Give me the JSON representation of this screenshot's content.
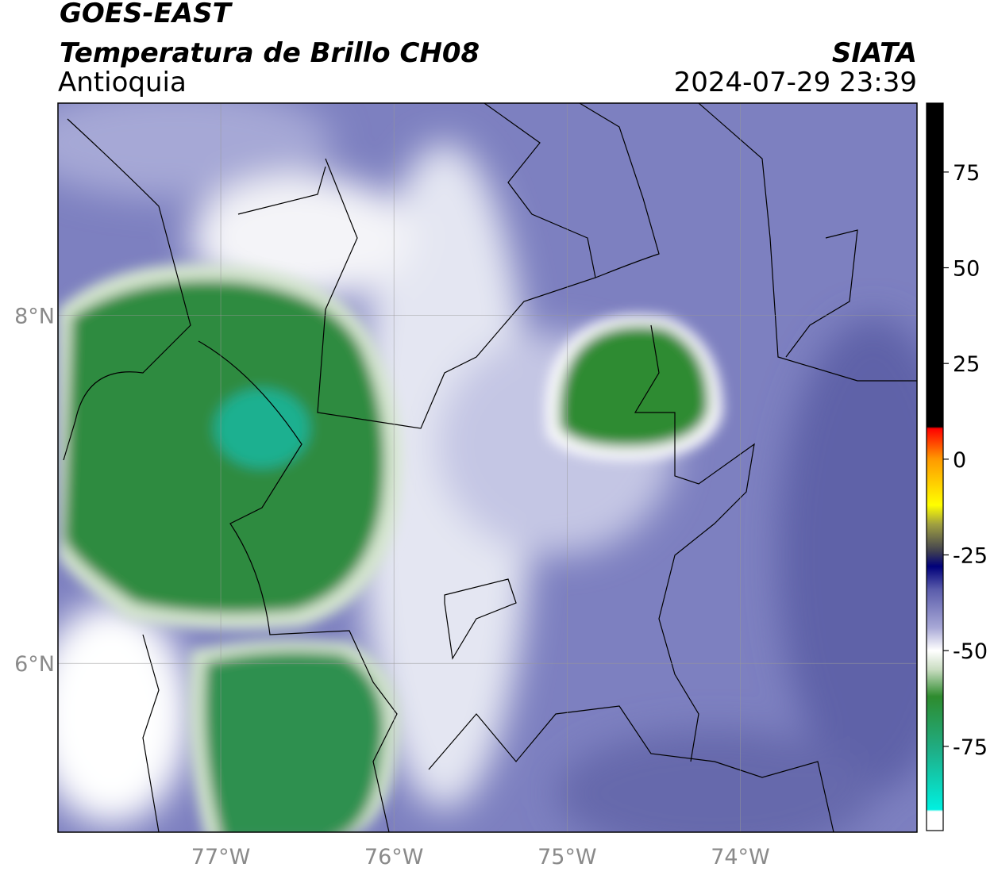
{
  "header": {
    "title": "GOES-EAST",
    "subtitle": "Temperatura de Brillo CH08",
    "region": "Antioquia",
    "source": "SIATA",
    "datetime": "2024-07-29 23:39"
  },
  "map": {
    "lon_range": [
      -77.94,
      -72.98
    ],
    "lat_range": [
      5.03,
      9.22
    ],
    "lon_ticks": [
      {
        "value": -77,
        "label": "77°W"
      },
      {
        "value": -76,
        "label": "76°W"
      },
      {
        "value": -75,
        "label": "75°W"
      },
      {
        "value": -74,
        "label": "74°W"
      }
    ],
    "lat_ticks": [
      {
        "value": 8,
        "label": "8°N"
      },
      {
        "value": 6,
        "label": "6°N"
      }
    ]
  },
  "colorbar": {
    "range": [
      -97,
      93
    ],
    "ticks": [
      75,
      50,
      25,
      0,
      -25,
      -50,
      -75
    ],
    "colormap": [
      {
        "value": -97,
        "color": "#ffffff"
      },
      {
        "value": -92,
        "color": "#ffffff"
      },
      {
        "value": -91.5,
        "color": "#00f0e0"
      },
      {
        "value": -76,
        "color": "#1fae86"
      },
      {
        "value": -62,
        "color": "#2e8b2e"
      },
      {
        "value": -55,
        "color": "#c8dcc0"
      },
      {
        "value": -50,
        "color": "#ffffff"
      },
      {
        "value": -44,
        "color": "#a8a8d6"
      },
      {
        "value": -34,
        "color": "#5a5cab"
      },
      {
        "value": -28,
        "color": "#00007a"
      },
      {
        "value": -24,
        "color": "#404050"
      },
      {
        "value": -17,
        "color": "#a0a040"
      },
      {
        "value": -12,
        "color": "#ffff00"
      },
      {
        "value": 0,
        "color": "#ff9900"
      },
      {
        "value": 8,
        "color": "#ff0000"
      },
      {
        "value": 8.5,
        "color": "#000000"
      },
      {
        "value": 93,
        "color": "#000000"
      }
    ]
  }
}
